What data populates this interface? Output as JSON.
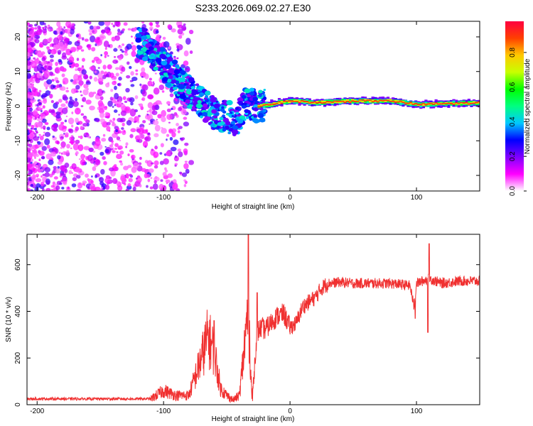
{
  "figure_title": "S233.2026.069.02.27.E30",
  "chart_data": [
    {
      "type": "heatmap",
      "title": "S233.2026.069.02.27.E30",
      "xlabel": "Height of straight line (km)",
      "ylabel": "Frequency (Hz)",
      "xlim": [
        -208,
        150
      ],
      "ylim": [
        -24.5,
        24.5
      ],
      "xticks": [
        -200,
        -100,
        0,
        100
      ],
      "yticks": [
        -20,
        -10,
        0,
        10,
        20
      ],
      "colorbar": {
        "label": "Normalized spectral amplitude",
        "range": [
          0,
          0.98
        ],
        "ticks": [
          0.0,
          0.2,
          0.4,
          0.6,
          0.8
        ],
        "tick_labels": [
          "0.0",
          "0.2",
          "0.4",
          "0.6",
          "0.8"
        ],
        "colormap": [
          "#ffffff",
          "#ff00ff",
          "#8000ff",
          "#0000ff",
          "#00c8ff",
          "#00ff80",
          "#00ff00",
          "#c8ff00",
          "#ffc800",
          "#ff4000",
          "#ff0040"
        ]
      },
      "ridge": {
        "description_points": [
          [
            -115,
            18
          ],
          [
            -100,
            12
          ],
          [
            -90,
            8
          ],
          [
            -80,
            4
          ],
          [
            -70,
            1
          ],
          [
            -60,
            -2
          ],
          [
            -50,
            -3
          ],
          [
            -42,
            -4
          ],
          [
            -35,
            1
          ],
          [
            -25,
            0
          ],
          [
            0,
            1.5
          ],
          [
            20,
            1
          ],
          [
            50,
            1.5
          ],
          [
            80,
            1.5
          ],
          [
            100,
            0.5
          ],
          [
            150,
            1
          ]
        ],
        "strong_segment_x": [
          -25,
          150
        ],
        "strong_frequency_hz": 1
      }
    },
    {
      "type": "line",
      "xlabel": "Height of straight line (km)",
      "ylabel": "SNR (10 * v/v)",
      "xlim": [
        -208,
        150
      ],
      "ylim": [
        0,
        730
      ],
      "xticks": [
        -200,
        -100,
        0,
        100
      ],
      "yticks": [
        0,
        200,
        400,
        600
      ],
      "color": "#f03030",
      "series": [
        {
          "name": "SNR",
          "x": [
            -208,
            -190,
            -170,
            -150,
            -130,
            -110,
            -100,
            -90,
            -80,
            -70,
            -65,
            -60,
            -55,
            -50,
            -45,
            -40,
            -36,
            -33,
            -30,
            -27,
            -25,
            -22,
            -20,
            -15,
            -10,
            -5,
            0,
            5,
            10,
            15,
            20,
            25,
            30,
            40,
            50,
            60,
            80,
            95,
            98,
            100,
            110,
            120,
            135,
            150
          ],
          "y": [
            25,
            25,
            25,
            25,
            25,
            25,
            60,
            40,
            40,
            200,
            290,
            230,
            70,
            40,
            20,
            40,
            250,
            420,
            10,
            250,
            320,
            330,
            320,
            350,
            380,
            390,
            330,
            350,
            420,
            440,
            460,
            500,
            520,
            525,
            520,
            520,
            520,
            510,
            420,
            520,
            540,
            520,
            530,
            530
          ]
        }
      ],
      "spikes": [
        [
          -33,
          730
        ],
        [
          -26,
          480
        ],
        [
          -60,
          360
        ],
        [
          99,
          370
        ],
        [
          110,
          690
        ],
        [
          109,
          310
        ]
      ]
    }
  ]
}
